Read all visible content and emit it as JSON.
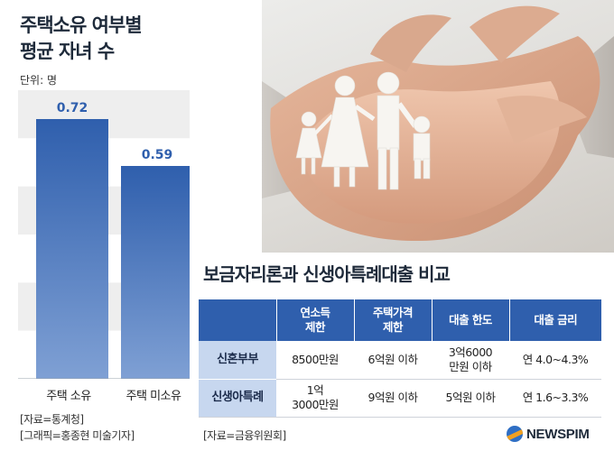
{
  "chart_data": {
    "type": "bar",
    "title_line1": "주택소유 여부별",
    "title_line2": "평균 자녀 수",
    "unit_label": "단위: 명",
    "categories": [
      "주택 소유",
      "주택 미소유"
    ],
    "values": [
      0.72,
      0.59
    ],
    "value_labels": [
      "0.72",
      "0.59"
    ],
    "ylim": [
      0,
      0.8
    ],
    "grid": "horizontal bands",
    "bar_color": "#2f5fad",
    "value_color": "#2f5fad"
  },
  "sources": {
    "left_1": "[자료=통계청]",
    "left_2": "[그래픽=홍종현 미술기자]",
    "right": "[자료=금융위원회]"
  },
  "table": {
    "title": "보금자리론과 신생아특례대출 비교",
    "headers": [
      "",
      "연소득\n제한",
      "주택가격\n제한",
      "대출 한도",
      "대출 금리"
    ],
    "rows": [
      {
        "name": "신혼부부",
        "cells": [
          "8500만원",
          "6억원 이하",
          "3억6000\n만원 이하",
          "연 4.0~4.3%"
        ]
      },
      {
        "name": "신생아특례",
        "cells": [
          "1억\n3000만원",
          "9억원 이하",
          "5억원 이하",
          "연 1.6~3.3%"
        ]
      }
    ]
  },
  "photo": {
    "subject": "hands-holding-family-icon"
  },
  "logo": {
    "text": "NEWSPIM"
  }
}
